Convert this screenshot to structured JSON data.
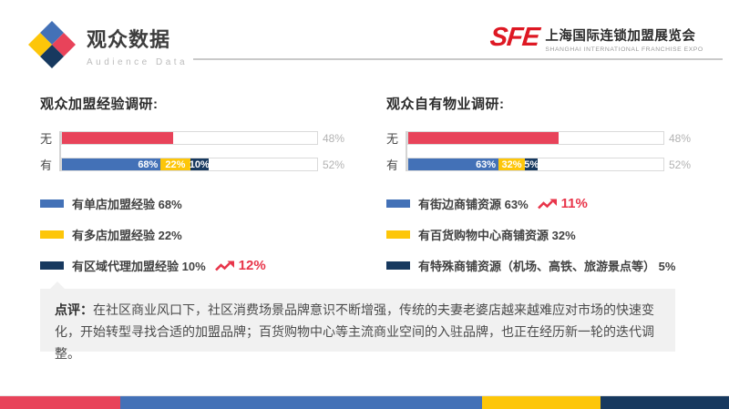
{
  "header": {
    "title": "观众数据",
    "subtitle": "Audience Data",
    "logo": {
      "brand": "SFE",
      "name_cn": "上海国际连锁加盟展览会",
      "name_en": "SHANGHAI INTERNATIONAL FRANCHISE EXPO"
    }
  },
  "colors": {
    "red": "#e8435a",
    "blue": "#4371b7",
    "yellow": "#fdc609",
    "navy": "#17395f",
    "logo_red": "#de1823",
    "trend_red": "#e8354a",
    "pct_gray": "#b3b3b3"
  },
  "chart_data": [
    {
      "type": "bar",
      "title": "观众加盟经验调研:",
      "rows": [
        {
          "label": "无",
          "total_label": "48%",
          "segments": [
            {
              "color": "red",
              "visual_pct": 43.5,
              "text": ""
            }
          ]
        },
        {
          "label": "有",
          "total_label": "52%",
          "segments": [
            {
              "color": "blue",
              "visual_pct": 38.7,
              "text": "68%",
              "align": "right"
            },
            {
              "color": "yellow",
              "visual_pct": 11.5,
              "text": "22%"
            },
            {
              "color": "navy",
              "visual_pct": 7.3,
              "text": "10%"
            }
          ]
        }
      ],
      "legend": [
        {
          "color": "blue",
          "label": "有单店加盟经验 68%"
        },
        {
          "color": "yellow",
          "label": "有多店加盟经验 22%"
        },
        {
          "color": "navy",
          "label": "有区域代理加盟经验 10%",
          "trend": "12%"
        }
      ]
    },
    {
      "type": "bar",
      "title": "观众自有物业调研:",
      "rows": [
        {
          "label": "无",
          "total_label": "48%",
          "segments": [
            {
              "color": "red",
              "visual_pct": 59.0,
              "text": ""
            }
          ]
        },
        {
          "label": "有",
          "total_label": "52%",
          "segments": [
            {
              "color": "blue",
              "visual_pct": 35.4,
              "text": "63%",
              "align": "right"
            },
            {
              "color": "yellow",
              "visual_pct": 10.3,
              "text": "32%"
            },
            {
              "color": "navy",
              "visual_pct": 5.2,
              "text": "5%"
            }
          ]
        }
      ],
      "legend": [
        {
          "color": "blue",
          "label": "有街边商铺资源 63%",
          "trend": "11%"
        },
        {
          "color": "yellow",
          "label": "有百货购物中心商铺资源 32%"
        },
        {
          "color": "navy",
          "label": "有特殊商铺资源（机场、高铁、旅游景点等） 5%"
        }
      ]
    }
  ],
  "comment": {
    "prefix": "点评：",
    "body": "在社区商业风口下，社区消费场景品牌意识不断增强，传统的夫妻老婆店越来越难应对市场的快速变化，开始转型寻找合适的加盟品牌；百货购物中心等主流商业空间的入驻品牌，也正在经历新一轮的迭代调整。"
  },
  "footer_bar": {
    "segments": [
      {
        "color": "red",
        "width_pct": 16.5
      },
      {
        "color": "blue",
        "width_pct": 49.6
      },
      {
        "color": "yellow",
        "width_pct": 16.3
      },
      {
        "color": "navy",
        "width_pct": 17.6
      }
    ]
  }
}
